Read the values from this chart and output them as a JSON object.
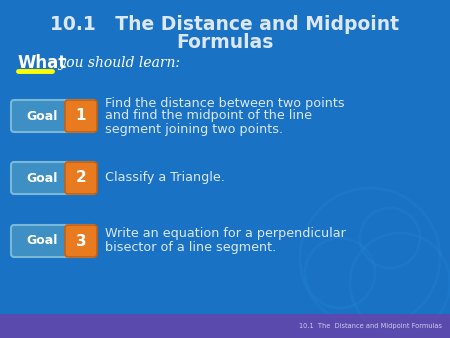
{
  "title_line1": "10.1   The Distance and Midpoint",
  "title_line2": "Formulas",
  "what_bold": "What",
  "what_italic": " you should learn:",
  "goals": [
    {
      "number": "1",
      "text_line1": "Find the distance between two points",
      "text_line2": "and find the midpoint of the line",
      "text_line3": "segment joining two points."
    },
    {
      "number": "2",
      "text_line1": "Classify a Triangle.",
      "text_line2": "",
      "text_line3": ""
    },
    {
      "number": "3",
      "text_line1": "Write an equation for a perpendicular",
      "text_line2": "bisector of a line segment.",
      "text_line3": ""
    }
  ],
  "bg_color": "#1a72c4",
  "title_color": "#dce8f8",
  "what_color": "#ffffff",
  "goal_text_color": "#dce8f8",
  "goal_badge_bg": "#3d8fc4",
  "goal_badge_border": "#7ab8d8",
  "goal_number_bg": "#e87a20",
  "footer_bg": "#6644aa",
  "footer_text": "10.1  The  Distance and Midpoint Formulas",
  "footer_color": "#ccccee",
  "yellow_underline_color": "#ffff00",
  "watermark_color": "#2288dd"
}
